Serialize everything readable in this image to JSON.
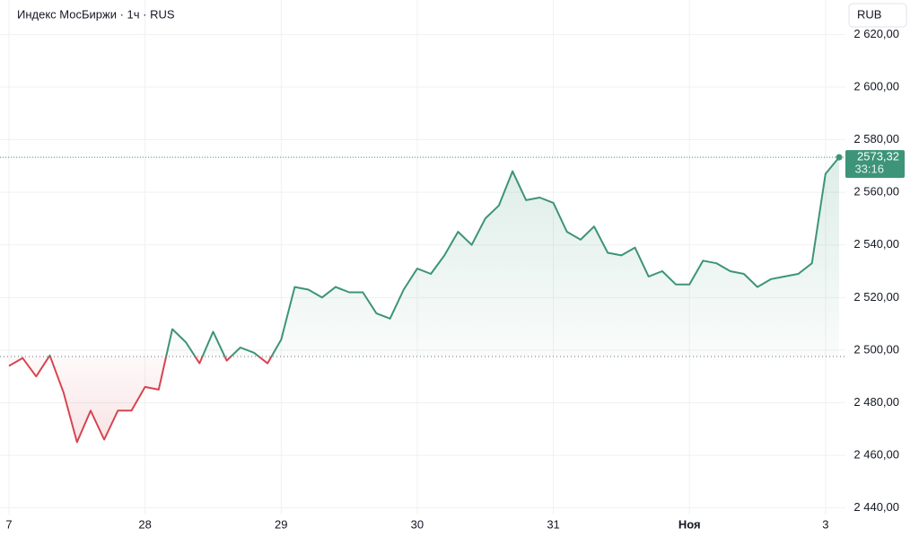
{
  "header": {
    "title": "Индекс МосБиржи · 1ч · RUS",
    "currency_button": "RUB"
  },
  "chart_data": {
    "type": "baseline-area",
    "categories": [
      "7",
      null,
      null,
      null,
      null,
      null,
      null,
      null,
      null,
      null,
      "28",
      null,
      null,
      null,
      null,
      null,
      null,
      null,
      null,
      null,
      "29",
      null,
      null,
      null,
      null,
      null,
      null,
      null,
      null,
      null,
      "30",
      null,
      null,
      null,
      null,
      null,
      null,
      null,
      null,
      null,
      "31",
      null,
      null,
      null,
      null,
      null,
      null,
      null,
      null,
      null,
      "Ноя",
      null,
      null,
      null,
      null,
      null,
      null,
      null,
      null,
      null,
      "3",
      null
    ],
    "values": [
      2494,
      2497,
      2490,
      2498,
      2484,
      2465,
      2477,
      2466,
      2477,
      2477,
      2486,
      2485,
      2508,
      2503,
      2495,
      2507,
      2496,
      2501,
      2499,
      2495,
      2504,
      2524,
      2523,
      2520,
      2524,
      2522,
      2522,
      2514,
      2512,
      2523,
      2531,
      2529,
      2536,
      2545,
      2540,
      2550,
      2555,
      2568,
      2557,
      2558,
      2556,
      2545,
      2542,
      2547,
      2537,
      2536,
      2539,
      2528,
      2530,
      2525,
      2525,
      2534,
      2533,
      2530,
      2529,
      2524,
      2527,
      2528,
      2529,
      2533,
      2567,
      2573.32
    ],
    "baseline": 2497.6,
    "up_color": "#3d9478",
    "down_color": "#d64550",
    "last_price_label": "2573,32",
    "countdown": "33:16",
    "ylim": [
      2437.5,
      2633.1
    ],
    "yticks": [
      {
        "value": 2440,
        "label": "2 440,00"
      },
      {
        "value": 2460,
        "label": "2 460,00"
      },
      {
        "value": 2480,
        "label": "2 480,00"
      },
      {
        "value": 2500,
        "label": "2 500,00"
      },
      {
        "value": 2520,
        "label": "2 520,00"
      },
      {
        "value": 2540,
        "label": "2 540,00"
      },
      {
        "value": 2560,
        "label": "2 560,00"
      },
      {
        "value": 2580,
        "label": "2 580,00"
      },
      {
        "value": 2600,
        "label": "2 600,00"
      },
      {
        "value": 2620,
        "label": "2 620,00"
      }
    ],
    "grid": true
  }
}
